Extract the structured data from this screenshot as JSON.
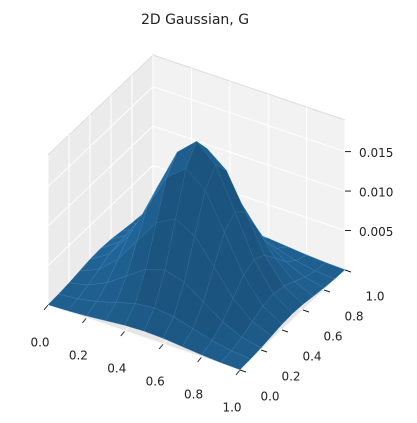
{
  "chart_data": {
    "type": "surface",
    "title": "2D Gaussian, G",
    "color": "#1f5f8f",
    "x": [
      0,
      0.1,
      0.2,
      0.3,
      0.4,
      0.5,
      0.6,
      0.7,
      0.8,
      0.9,
      1.0
    ],
    "y": [
      0,
      0.1,
      0.2,
      0.3,
      0.4,
      0.5,
      0.6,
      0.7,
      0.8,
      0.9,
      1.0
    ],
    "z": [
      [
        4e-05,
        0.00011,
        0.00026,
        0.00049,
        0.00072,
        0.00081,
        0.00072,
        0.00049,
        0.00026,
        0.00011,
        4e-05
      ],
      [
        0.00011,
        0.00034,
        0.00081,
        0.00152,
        0.00221,
        0.0025,
        0.00221,
        0.00152,
        0.00081,
        0.00034,
        0.00011
      ],
      [
        0.00026,
        0.00081,
        0.00195,
        0.00364,
        0.0053,
        0.00601,
        0.0053,
        0.00364,
        0.00195,
        0.00081,
        0.00026
      ],
      [
        0.00049,
        0.00152,
        0.00364,
        0.0068,
        0.0099,
        0.01122,
        0.0099,
        0.0068,
        0.00364,
        0.00152,
        0.00049
      ],
      [
        0.00072,
        0.00221,
        0.0053,
        0.0099,
        0.01441,
        0.01633,
        0.01441,
        0.0099,
        0.0053,
        0.00221,
        0.00072
      ],
      [
        0.00081,
        0.0025,
        0.00601,
        0.01122,
        0.01633,
        0.0185,
        0.01633,
        0.01122,
        0.00601,
        0.0025,
        0.00081
      ],
      [
        0.00072,
        0.00221,
        0.0053,
        0.0099,
        0.01441,
        0.01633,
        0.01441,
        0.0099,
        0.0053,
        0.00221,
        0.00072
      ],
      [
        0.00049,
        0.00152,
        0.00364,
        0.0068,
        0.0099,
        0.01122,
        0.0099,
        0.0068,
        0.00364,
        0.00152,
        0.00049
      ],
      [
        0.00026,
        0.00081,
        0.00195,
        0.00364,
        0.0053,
        0.00601,
        0.0053,
        0.00364,
        0.00195,
        0.00081,
        0.00026
      ],
      [
        0.00011,
        0.00034,
        0.00081,
        0.00152,
        0.00221,
        0.0025,
        0.00221,
        0.00152,
        0.00081,
        0.00034,
        0.00011
      ],
      [
        4e-05,
        0.00011,
        0.00026,
        0.00049,
        0.00072,
        0.00081,
        0.00072,
        0.00049,
        0.00026,
        0.00011,
        4e-05
      ]
    ],
    "xlim": [
      0,
      1
    ],
    "ylim": [
      0,
      1
    ],
    "zlim": [
      0,
      0.019
    ],
    "xticks": [
      {
        "value": 0,
        "label": "0.0"
      },
      0.2,
      0.4,
      0.6,
      0.8,
      {
        "value": 1,
        "label": "1.0"
      }
    ],
    "yticks": [
      {
        "value": 0,
        "label": "0.0"
      },
      0.2,
      0.4,
      0.6,
      0.8,
      {
        "value": 1,
        "label": "1.0"
      }
    ],
    "zticks": [
      0.005,
      {
        "value": 0.01,
        "label": "0.010"
      },
      0.015
    ],
    "grid": true
  }
}
